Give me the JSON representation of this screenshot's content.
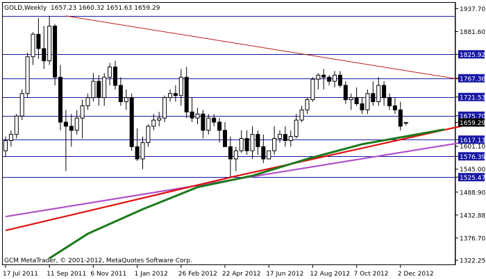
{
  "chart_header": {
    "symbol_period": "GOLD,Weekly",
    "ohlc": "1657.23 1660.32 1651.63 1659.29"
  },
  "copyright": "GCM MetaTrader, © 2001-2012, MetaQuotes Software Corp.",
  "chart_data": {
    "type": "candlestick",
    "y_axis": {
      "ticks": [
        1937.7,
        1881.6,
        1825.92,
        1767.36,
        1721.53,
        1675.7,
        1659.29,
        1617.13,
        1601.1,
        1576.39,
        1545.0,
        1525.47,
        1488.9,
        1432.88,
        1376.7,
        1322.25
      ],
      "ticks_text": [
        "1937.70",
        "1881.60",
        "1825.92",
        "1767.36",
        "1721.53",
        "1675.70",
        "1659.29",
        "1617.13",
        "1601.10",
        "1576.39",
        "1545.00",
        "1525.47",
        "1488.90",
        "1432.88",
        "1376.70",
        "1322.25"
      ],
      "ylim": [
        1312,
        1952
      ],
      "highlighted_levels": [
        1920.13,
        1825.92,
        1767.36,
        1721.53,
        1675.7,
        1617.13,
        1576.39,
        1525.47
      ],
      "current_price": 1659.29
    },
    "x_axis": {
      "labels": [
        "17 Jul 2011",
        "11 Sep 2011",
        "6 Nov 2011",
        "1 Jan 2012",
        "26 Feb 2012",
        "22 Apr 2012",
        "17 Jun 2012",
        "12 Aug 2012",
        "7 Oct 2012",
        "2 Dec 2012"
      ],
      "label_index": [
        0,
        8,
        16,
        24,
        32,
        40,
        48,
        56,
        64,
        72
      ]
    },
    "series": [
      {
        "name": "candles",
        "candles": [
          [
            1590,
            1625,
            1575,
            1615
          ],
          [
            1615,
            1640,
            1600,
            1630
          ],
          [
            1630,
            1680,
            1620,
            1675
          ],
          [
            1675,
            1740,
            1665,
            1730
          ],
          [
            1730,
            1830,
            1720,
            1820
          ],
          [
            1820,
            1880,
            1800,
            1875
          ],
          [
            1875,
            1915,
            1815,
            1840
          ],
          [
            1840,
            1895,
            1790,
            1810
          ],
          [
            1810,
            1920,
            1800,
            1895
          ],
          [
            1895,
            1900,
            1750,
            1770
          ],
          [
            1770,
            1800,
            1640,
            1660
          ],
          [
            1660,
            1690,
            1540,
            1650
          ],
          [
            1650,
            1680,
            1600,
            1640
          ],
          [
            1640,
            1690,
            1630,
            1670
          ],
          [
            1670,
            1715,
            1620,
            1700
          ],
          [
            1700,
            1730,
            1690,
            1720
          ],
          [
            1720,
            1780,
            1710,
            1760
          ],
          [
            1760,
            1775,
            1700,
            1720
          ],
          [
            1720,
            1780,
            1700,
            1770
          ],
          [
            1770,
            1805,
            1750,
            1795
          ],
          [
            1795,
            1810,
            1740,
            1750
          ],
          [
            1750,
            1770,
            1700,
            1710
          ],
          [
            1710,
            1740,
            1690,
            1720
          ],
          [
            1720,
            1730,
            1590,
            1600
          ],
          [
            1600,
            1645,
            1565,
            1570
          ],
          [
            1570,
            1625,
            1545,
            1610
          ],
          [
            1610,
            1655,
            1600,
            1650
          ],
          [
            1650,
            1680,
            1640,
            1665
          ],
          [
            1665,
            1685,
            1650,
            1670
          ],
          [
            1670,
            1725,
            1660,
            1720
          ],
          [
            1720,
            1740,
            1710,
            1730
          ],
          [
            1730,
            1750,
            1710,
            1725
          ],
          [
            1725,
            1790,
            1700,
            1770
          ],
          [
            1770,
            1795,
            1670,
            1685
          ],
          [
            1685,
            1720,
            1660,
            1670
          ],
          [
            1670,
            1695,
            1655,
            1680
          ],
          [
            1680,
            1690,
            1620,
            1640
          ],
          [
            1640,
            1680,
            1630,
            1670
          ],
          [
            1670,
            1680,
            1650,
            1660
          ],
          [
            1660,
            1670,
            1610,
            1640
          ],
          [
            1640,
            1660,
            1600,
            1600
          ],
          [
            1600,
            1625,
            1525,
            1570
          ],
          [
            1570,
            1600,
            1540,
            1590
          ],
          [
            1590,
            1640,
            1585,
            1620
          ],
          [
            1620,
            1640,
            1580,
            1590
          ],
          [
            1590,
            1650,
            1570,
            1630
          ],
          [
            1630,
            1640,
            1580,
            1600
          ],
          [
            1600,
            1630,
            1560,
            1570
          ],
          [
            1570,
            1590,
            1570,
            1590
          ],
          [
            1590,
            1650,
            1580,
            1620
          ],
          [
            1620,
            1640,
            1610,
            1630
          ],
          [
            1630,
            1650,
            1600,
            1615
          ],
          [
            1615,
            1640,
            1600,
            1625
          ],
          [
            1625,
            1680,
            1620,
            1665
          ],
          [
            1665,
            1700,
            1660,
            1690
          ],
          [
            1690,
            1720,
            1680,
            1715
          ],
          [
            1715,
            1770,
            1710,
            1765
          ],
          [
            1765,
            1780,
            1740,
            1775
          ],
          [
            1775,
            1790,
            1740,
            1770
          ],
          [
            1770,
            1775,
            1750,
            1760
          ],
          [
            1760,
            1785,
            1745,
            1775
          ],
          [
            1775,
            1785,
            1745,
            1750
          ],
          [
            1750,
            1760,
            1705,
            1715
          ],
          [
            1715,
            1730,
            1690,
            1720
          ],
          [
            1720,
            1745,
            1700,
            1705
          ],
          [
            1705,
            1720,
            1680,
            1690
          ],
          [
            1690,
            1740,
            1680,
            1730
          ],
          [
            1730,
            1760,
            1700,
            1710
          ],
          [
            1710,
            1770,
            1700,
            1750
          ],
          [
            1750,
            1760,
            1700,
            1720
          ],
          [
            1720,
            1730,
            1690,
            1700
          ],
          [
            1700,
            1720,
            1680,
            1690
          ],
          [
            1690,
            1710,
            1640,
            1650
          ],
          [
            1657.23,
            1660.32,
            1651.63,
            1659.29
          ]
        ]
      },
      {
        "name": "green_average",
        "x": [
          8,
          15,
          25,
          35,
          45,
          55,
          65,
          80
        ],
        "y": [
          1327,
          1387,
          1447,
          1501,
          1529,
          1570,
          1606,
          1642
        ]
      },
      {
        "name": "red_support",
        "x": [
          0,
          41,
          85
        ],
        "y": [
          1395,
          1525,
          1656
        ]
      },
      {
        "name": "violet_support",
        "x": [
          0,
          85
        ],
        "y": [
          1429,
          1614
        ]
      },
      {
        "name": "resistance_line",
        "x": [
          11,
          85
        ],
        "y": [
          1920,
          1760
        ]
      }
    ],
    "grid": false,
    "legend": "none"
  },
  "colors": {
    "bull_candle": "#ffffff",
    "bear_candle": "#000000",
    "level_lines": "#1717a6",
    "level_label_bg": "#1717a6",
    "current_price_bg": "#000000",
    "green_average": "#1a7a1a",
    "red_support": "#e01010",
    "violet_support": "#b050c8",
    "resistance_line": "#c01818"
  }
}
